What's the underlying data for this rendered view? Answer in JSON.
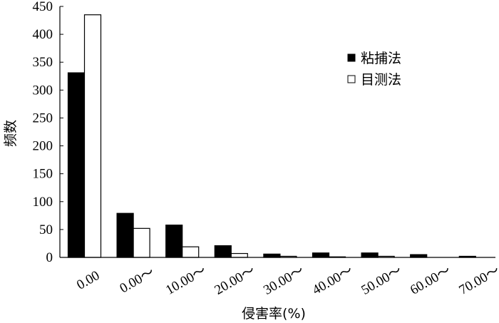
{
  "chart_data": {
    "type": "bar",
    "title": "",
    "xlabel": "侵害率(%)",
    "ylabel": "频数",
    "ylim": [
      0,
      450
    ],
    "yticks": [
      0,
      50,
      100,
      150,
      200,
      250,
      300,
      350,
      400,
      450
    ],
    "categories": [
      "0.00",
      "0.00～",
      "10.00～",
      "20.00～",
      "30.00～",
      "40.00～",
      "50.00～",
      "60.00～",
      "70.00～"
    ],
    "series": [
      {
        "name": "粘捕法",
        "color": "#000000",
        "values": [
          331,
          79,
          58,
          21,
          6,
          8,
          8,
          5,
          2
        ]
      },
      {
        "name": "目测法",
        "color": "#ffffff",
        "values": [
          435,
          52,
          19,
          7,
          2,
          1,
          2,
          0,
          0
        ]
      }
    ],
    "legend_position": "top-right",
    "grid": false
  }
}
